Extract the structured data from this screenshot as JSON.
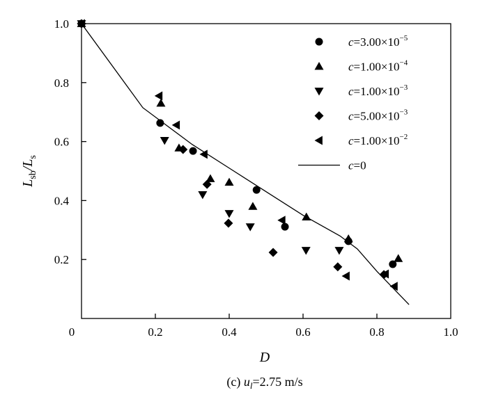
{
  "chart_data": {
    "type": "scatter",
    "xlabel": "D",
    "ylabel": {
      "main": "L",
      "sub1": "sb",
      "sep": "/L",
      "sub2": "s"
    },
    "caption": {
      "prefix": "(c) ",
      "var": "u",
      "sub": "l",
      "rest": "=2.75 m/s"
    },
    "xlim": [
      0,
      1.0
    ],
    "ylim": [
      0,
      1.0
    ],
    "xticks": [
      "0",
      "0.2",
      "0.4",
      "0.6",
      "0.8",
      "1.0"
    ],
    "yticks": [
      "0.2",
      "0.4",
      "0.6",
      "0.8",
      "1.0"
    ],
    "grid": false,
    "legend_placement": "top-right",
    "series": [
      {
        "name": "c=3.00×10⁻⁵",
        "label_var": "c",
        "label_rest": "=3.00×10",
        "label_exp": "−5",
        "marker": "circle",
        "points": [
          [
            0,
            1.0
          ],
          [
            0.213,
            0.663
          ],
          [
            0.302,
            0.568
          ],
          [
            0.474,
            0.436
          ],
          [
            0.551,
            0.311
          ],
          [
            0.723,
            0.262
          ],
          [
            0.843,
            0.184
          ]
        ]
      },
      {
        "name": "c=1.00×10⁻⁴",
        "label_var": "c",
        "label_rest": "=1.00×10",
        "label_exp": "−4",
        "marker": "triangle-up",
        "points": [
          [
            0,
            1.0
          ],
          [
            0.215,
            0.73
          ],
          [
            0.264,
            0.578
          ],
          [
            0.349,
            0.474
          ],
          [
            0.4,
            0.462
          ],
          [
            0.464,
            0.38
          ],
          [
            0.609,
            0.344
          ],
          [
            0.723,
            0.27
          ],
          [
            0.858,
            0.203
          ]
        ]
      },
      {
        "name": "c=1.00×10⁻³",
        "label_var": "c",
        "label_rest": "=1.00×10",
        "label_exp": "−3",
        "marker": "triangle-down",
        "points": [
          [
            0,
            1.0
          ],
          [
            0.225,
            0.604
          ],
          [
            0.328,
            0.42
          ],
          [
            0.4,
            0.356
          ],
          [
            0.457,
            0.311
          ],
          [
            0.608,
            0.231
          ],
          [
            0.698,
            0.231
          ]
        ]
      },
      {
        "name": "c=5.00×10⁻³",
        "label_var": "c",
        "label_rest": "=5.00×10",
        "label_exp": "−3",
        "marker": "diamond",
        "points": [
          [
            0,
            1.0
          ],
          [
            0.275,
            0.573
          ],
          [
            0.34,
            0.455
          ],
          [
            0.398,
            0.323
          ],
          [
            0.519,
            0.224
          ],
          [
            0.694,
            0.175
          ],
          [
            0.819,
            0.149
          ]
        ]
      },
      {
        "name": "c=1.00×10⁻²",
        "label_var": "c",
        "label_rest": "=1.00×10",
        "label_exp": "−2",
        "marker": "triangle-left",
        "points": [
          [
            0,
            1.0
          ],
          [
            0.21,
            0.755
          ],
          [
            0.257,
            0.656
          ],
          [
            0.332,
            0.557
          ],
          [
            0.543,
            0.333
          ],
          [
            0.717,
            0.144
          ],
          [
            0.823,
            0.151
          ],
          [
            0.847,
            0.109
          ]
        ]
      },
      {
        "name": "c=0",
        "label_var": "c",
        "label_rest": "=0",
        "label_exp": "",
        "marker": "line",
        "points": [
          [
            0,
            1.0
          ],
          [
            0.166,
            0.715
          ],
          [
            0.3,
            0.59
          ],
          [
            0.4,
            0.51
          ],
          [
            0.5,
            0.43
          ],
          [
            0.6,
            0.35
          ],
          [
            0.7,
            0.28
          ],
          [
            0.747,
            0.236
          ],
          [
            0.8,
            0.16
          ],
          [
            0.887,
            0.047
          ]
        ]
      }
    ]
  }
}
